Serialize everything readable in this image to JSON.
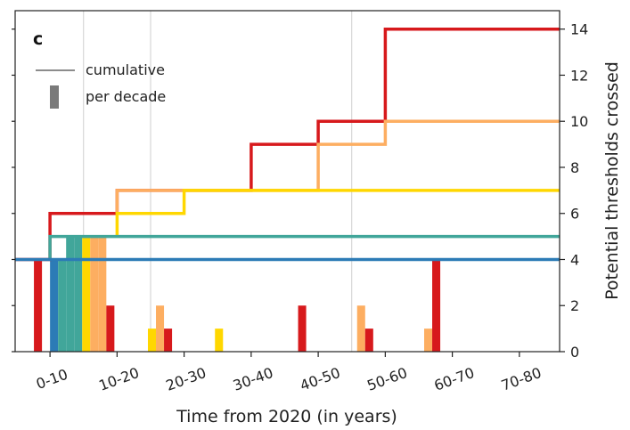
{
  "chart_data": {
    "type": "bar",
    "panel_label": "c",
    "xlabel": "Time from 2020 (in years)",
    "ylabel": "Potential thresholds crossed",
    "categories": [
      "0-10",
      "10-20",
      "20-30",
      "30-40",
      "40-50",
      "50-60",
      "60-70",
      "70-80"
    ],
    "yticks": [
      0,
      2,
      4,
      6,
      8,
      10,
      12,
      14
    ],
    "ylim": [
      0,
      14.8
    ],
    "xlim": [
      -5.2,
      76
    ],
    "grid": "vertical lines at 5, 15, 45 years",
    "legend": {
      "position": "top-left",
      "entries": [
        {
          "label": "cumulative",
          "symbol": "line"
        },
        {
          "label": "per decade",
          "symbol": "bar"
        }
      ]
    },
    "cumulative_series": [
      {
        "color": "#d7191c",
        "x": [
          -5.2,
          0,
          0,
          10,
          10,
          30,
          30,
          40,
          40,
          50,
          50,
          76
        ],
        "y": [
          4,
          4,
          6,
          6,
          7,
          7,
          9,
          9,
          10,
          10,
          14,
          14
        ]
      },
      {
        "color": "#fdae61",
        "x": [
          10,
          10,
          40,
          40,
          50,
          50,
          76
        ],
        "y": [
          6,
          7,
          7,
          9,
          9,
          10,
          10
        ]
      },
      {
        "color": "#ffd700",
        "x": [
          10,
          10,
          20,
          20,
          76
        ],
        "y": [
          5,
          6,
          6,
          7,
          7
        ]
      },
      {
        "color": "#41a69a",
        "x": [
          0,
          0,
          76
        ],
        "y": [
          4,
          5,
          5
        ]
      },
      {
        "color": "#2c7bb6",
        "x": [
          -5.2,
          76
        ],
        "y": [
          4,
          4
        ]
      }
    ],
    "per_decade_bars": [
      {
        "x": -1.8,
        "value": 4,
        "color": "#d7191c"
      },
      {
        "x": 0.6,
        "value": 4,
        "color": "#2c7bb6"
      },
      {
        "x": 1.8,
        "value": 4,
        "color": "#41a69a"
      },
      {
        "x": 3.0,
        "value": 5,
        "color": "#41a69a"
      },
      {
        "x": 4.2,
        "value": 5,
        "color": "#41a69a"
      },
      {
        "x": 5.4,
        "value": 5,
        "color": "#ffd700"
      },
      {
        "x": 6.6,
        "value": 5,
        "color": "#fdae61"
      },
      {
        "x": 7.8,
        "value": 5,
        "color": "#fdae61"
      },
      {
        "x": 9.0,
        "value": 2,
        "color": "#d7191c"
      },
      {
        "x": 15.2,
        "value": 1,
        "color": "#ffd700"
      },
      {
        "x": 16.4,
        "value": 2,
        "color": "#fdae61"
      },
      {
        "x": 17.6,
        "value": 1,
        "color": "#d7191c"
      },
      {
        "x": 25.2,
        "value": 1,
        "color": "#ffd700"
      },
      {
        "x": 37.6,
        "value": 2,
        "color": "#d7191c"
      },
      {
        "x": 46.4,
        "value": 2,
        "color": "#fdae61"
      },
      {
        "x": 47.6,
        "value": 1,
        "color": "#d7191c"
      },
      {
        "x": 56.4,
        "value": 1,
        "color": "#fdae61"
      },
      {
        "x": 57.6,
        "value": 4,
        "color": "#d7191c"
      }
    ]
  }
}
